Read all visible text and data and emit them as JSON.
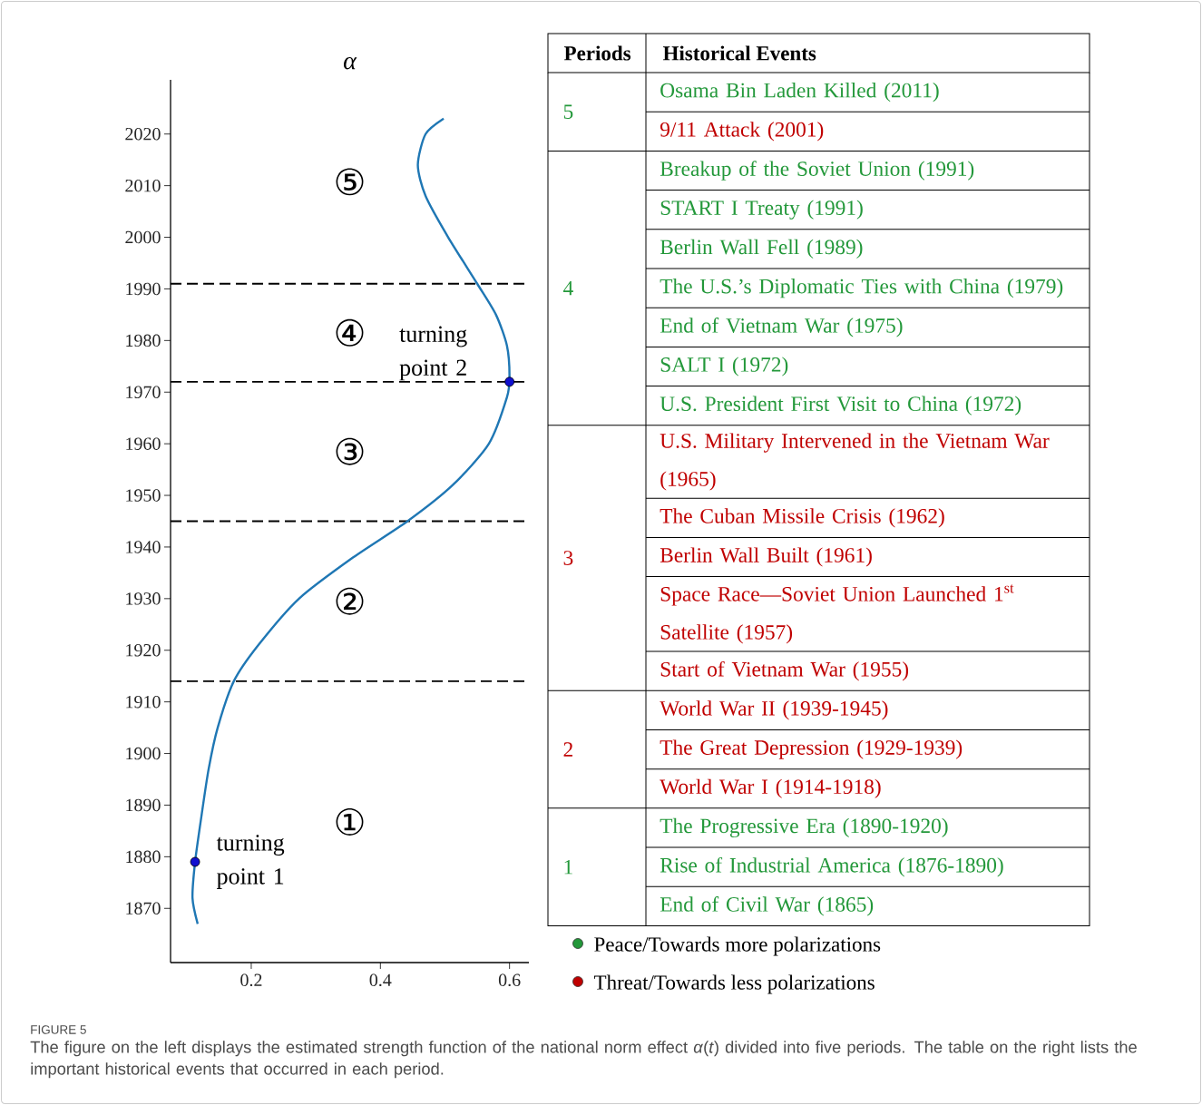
{
  "chart_data": [
    {
      "type": "line",
      "xlabel": "α",
      "xlim": [
        0.075,
        0.63
      ],
      "ylim": [
        1859.5,
        2030.5
      ],
      "xticks": [
        0.2,
        0.4,
        0.6
      ],
      "yticks": [
        1870,
        1880,
        1890,
        1900,
        1910,
        1920,
        1930,
        1940,
        1950,
        1960,
        1970,
        1980,
        1990,
        2000,
        2010,
        2020
      ],
      "grid": false,
      "series": [
        {
          "color": "#1f77b4",
          "marker": "none",
          "line_style": "solid",
          "x": [
            0.117,
            0.109,
            0.113,
            0.123,
            0.134,
            0.148,
            0.173,
            0.211,
            0.274,
            0.358,
            0.442,
            0.512,
            0.568,
            0.596,
            0.6,
            0.596,
            0.579,
            0.55,
            0.505,
            0.47,
            0.458,
            0.47,
            0.498
          ],
          "values": [
            1867,
            1872,
            1879,
            1888,
            1897,
            1905,
            1914,
            1921,
            1930,
            1938,
            1945,
            1952,
            1960,
            1969,
            1973,
            1979,
            1985,
            1991,
            2000,
            2008,
            2014,
            2020,
            2023
          ]
        },
        {
          "type": "scatter",
          "color": "#1010d0",
          "marker": "circle",
          "x": [
            0.113,
            0.6
          ],
          "values": [
            1879,
            1972
          ]
        }
      ],
      "ref_lines": [
        {
          "axis": "y",
          "value": 1914,
          "color": "#000000",
          "line_style": "dashed"
        },
        {
          "axis": "y",
          "value": 1945,
          "color": "#000000",
          "line_style": "dashed"
        },
        {
          "axis": "y",
          "value": 1972,
          "color": "#000000",
          "line_style": "dashed"
        },
        {
          "axis": "y",
          "value": 1991,
          "color": "#000000",
          "line_style": "dashed"
        }
      ],
      "annotations": [
        {
          "text": "turning point 1",
          "x": 0.113,
          "y": 1879
        },
        {
          "text": "turning point 2",
          "x": 0.6,
          "y": 1972
        },
        "①",
        "②",
        "③",
        "④",
        "⑤",
        "FIGURE 5",
        "The figure on the left displays the estimated strength function of the national norm effect *α*(*t*) divided into five periods. The table on the right lists the important historical events that occurred in each period."
      ]
    },
    {
      "type": "other",
      "annotations": [
        "Periods",
        "Historical Events",
        "Peace/Towards more polarizations",
        "Threat/Towards less polarizations"
      ],
      "y_categories": [
        "5",
        null,
        "4",
        null,
        null,
        null,
        null,
        null,
        null,
        "3",
        null,
        null,
        null,
        null,
        "2",
        null,
        null,
        "1",
        null,
        null
      ],
      "colors": [
        "#23983a",
        "#c00000",
        "#23983a",
        "#23983a",
        "#23983a",
        "#23983a",
        "#23983a",
        "#23983a",
        "#23983a",
        "#c00000",
        "#c00000",
        "#c00000",
        "#c00000",
        "#c00000",
        "#c00000",
        "#c00000",
        "#c00000",
        "#23983a",
        "#23983a",
        "#23983a"
      ],
      "categories": [
        "Osama Bin Laden Killed (2011)",
        "9/11 Attack (2001)",
        "Breakup of the Soviet Union (1991)",
        "START I Treaty (1991)",
        "Berlin Wall Fell (1989)",
        "The U.S.’s Diplomatic Ties with China (1979)",
        "End of Vietnam War (1975)",
        "SALT I (1972)",
        "U.S. President First Visit to China (1972)",
        "U.S. Military Intervened in the Vietnam War (1965)",
        "The Cuban Missile Crisis (1962)",
        "Berlin Wall Built (1961)",
        "Space Race—Soviet Union Launched 1$^{st}$ Satellite (1957)",
        "Start of Vietnam War (1955)",
        "World War II (1939-1945)",
        "The Great Depression (1929-1939)",
        "World War I (1914-1918)",
        "The Progressive Era (1890-1920)",
        "Rise of Industrial America (1876-1890)",
        "End of Civil War (1865)"
      ]
    }
  ]
}
